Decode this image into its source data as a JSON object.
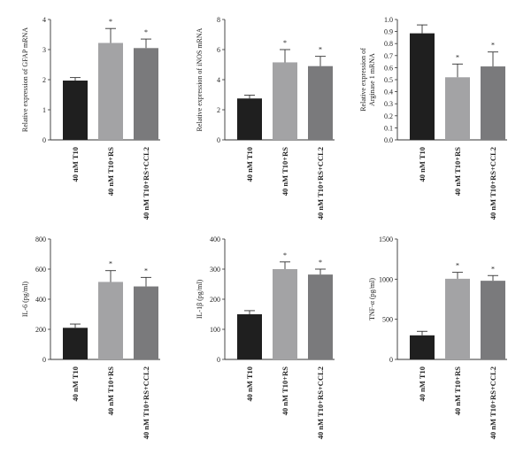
{
  "colors": {
    "bars": [
      "#1f1f1f",
      "#a3a3a5",
      "#7a7a7c"
    ],
    "axis": "#333333"
  },
  "chart_data": [
    {
      "type": "bar",
      "ylabel": "Relative expression of GFAP mRNA",
      "ylim": [
        0,
        4
      ],
      "yticks": [
        0,
        1,
        2,
        3,
        4
      ],
      "categories": [
        "40 nM T10",
        "40 nM T10+RS",
        "40 nM T10+RS+CCL2"
      ],
      "values": [
        1.97,
        3.22,
        3.05
      ],
      "errors": [
        0.1,
        0.48,
        0.3
      ],
      "significance": [
        "",
        "*",
        "*"
      ],
      "grid": false
    },
    {
      "type": "bar",
      "ylabel": "Relative expression of iNOS mRNA",
      "ylim": [
        0,
        8
      ],
      "yticks": [
        0,
        2,
        4,
        6,
        8
      ],
      "categories": [
        "40 nM T10",
        "40 nM T10+RS",
        "40 nM T10+RS+CCL2"
      ],
      "values": [
        2.75,
        5.15,
        4.9
      ],
      "errors": [
        0.22,
        0.85,
        0.65
      ],
      "significance": [
        "",
        "*",
        "*"
      ],
      "grid": false
    },
    {
      "type": "bar",
      "ylabel_lines": [
        "Relative expression of",
        "Arginase 1 mRNA"
      ],
      "ylim": [
        0,
        1
      ],
      "yticks": [
        0,
        0.1,
        0.2,
        0.3,
        0.4,
        0.5,
        0.6,
        0.7,
        0.8,
        0.9,
        1.0
      ],
      "ytick_labels": [
        "0.0",
        "0.1",
        "0.2",
        "0.3",
        "0.4",
        "0.5",
        "0.6",
        "0.7",
        "0.8",
        "0.9",
        "1.0"
      ],
      "categories": [
        "40 nM T10",
        "40 nM T10+RS",
        "40 nM T10+RS+CCL2"
      ],
      "values": [
        0.885,
        0.52,
        0.61
      ],
      "errors": [
        0.07,
        0.11,
        0.12
      ],
      "significance": [
        "",
        "*",
        "*"
      ],
      "grid": false
    },
    {
      "type": "bar",
      "ylabel": "IL-6 (pg/ml)",
      "ylim": [
        0,
        800
      ],
      "yticks": [
        0,
        200,
        400,
        600,
        800
      ],
      "categories": [
        "40 nM T10",
        "40 nM T10+RS",
        "40 nM T10+RS+CCL2"
      ],
      "values": [
        210,
        515,
        485
      ],
      "errors": [
        25,
        75,
        60
      ],
      "significance": [
        "",
        "*",
        "*"
      ],
      "grid": false
    },
    {
      "type": "bar",
      "ylabel": "IL-1β (pg/ml)",
      "ylim": [
        0,
        400
      ],
      "yticks": [
        0,
        100,
        200,
        300,
        400
      ],
      "categories": [
        "40 nM T10",
        "40 nM T10+RS",
        "40 nM T10+RS+CCL2"
      ],
      "values": [
        150,
        300,
        282
      ],
      "errors": [
        12,
        24,
        18
      ],
      "significance": [
        "",
        "*",
        "*"
      ],
      "grid": false
    },
    {
      "type": "bar",
      "ylabel": "TNF-α (pg/ml)",
      "ylim": [
        0,
        1500
      ],
      "yticks": [
        0,
        500,
        1000,
        1500
      ],
      "categories": [
        "40 nM T10",
        "40 nM T10+RS",
        "40 nM T10+RS+CCL2"
      ],
      "values": [
        300,
        1005,
        980
      ],
      "errors": [
        50,
        80,
        65
      ],
      "significance": [
        "",
        "*",
        "*"
      ],
      "grid": false
    }
  ]
}
